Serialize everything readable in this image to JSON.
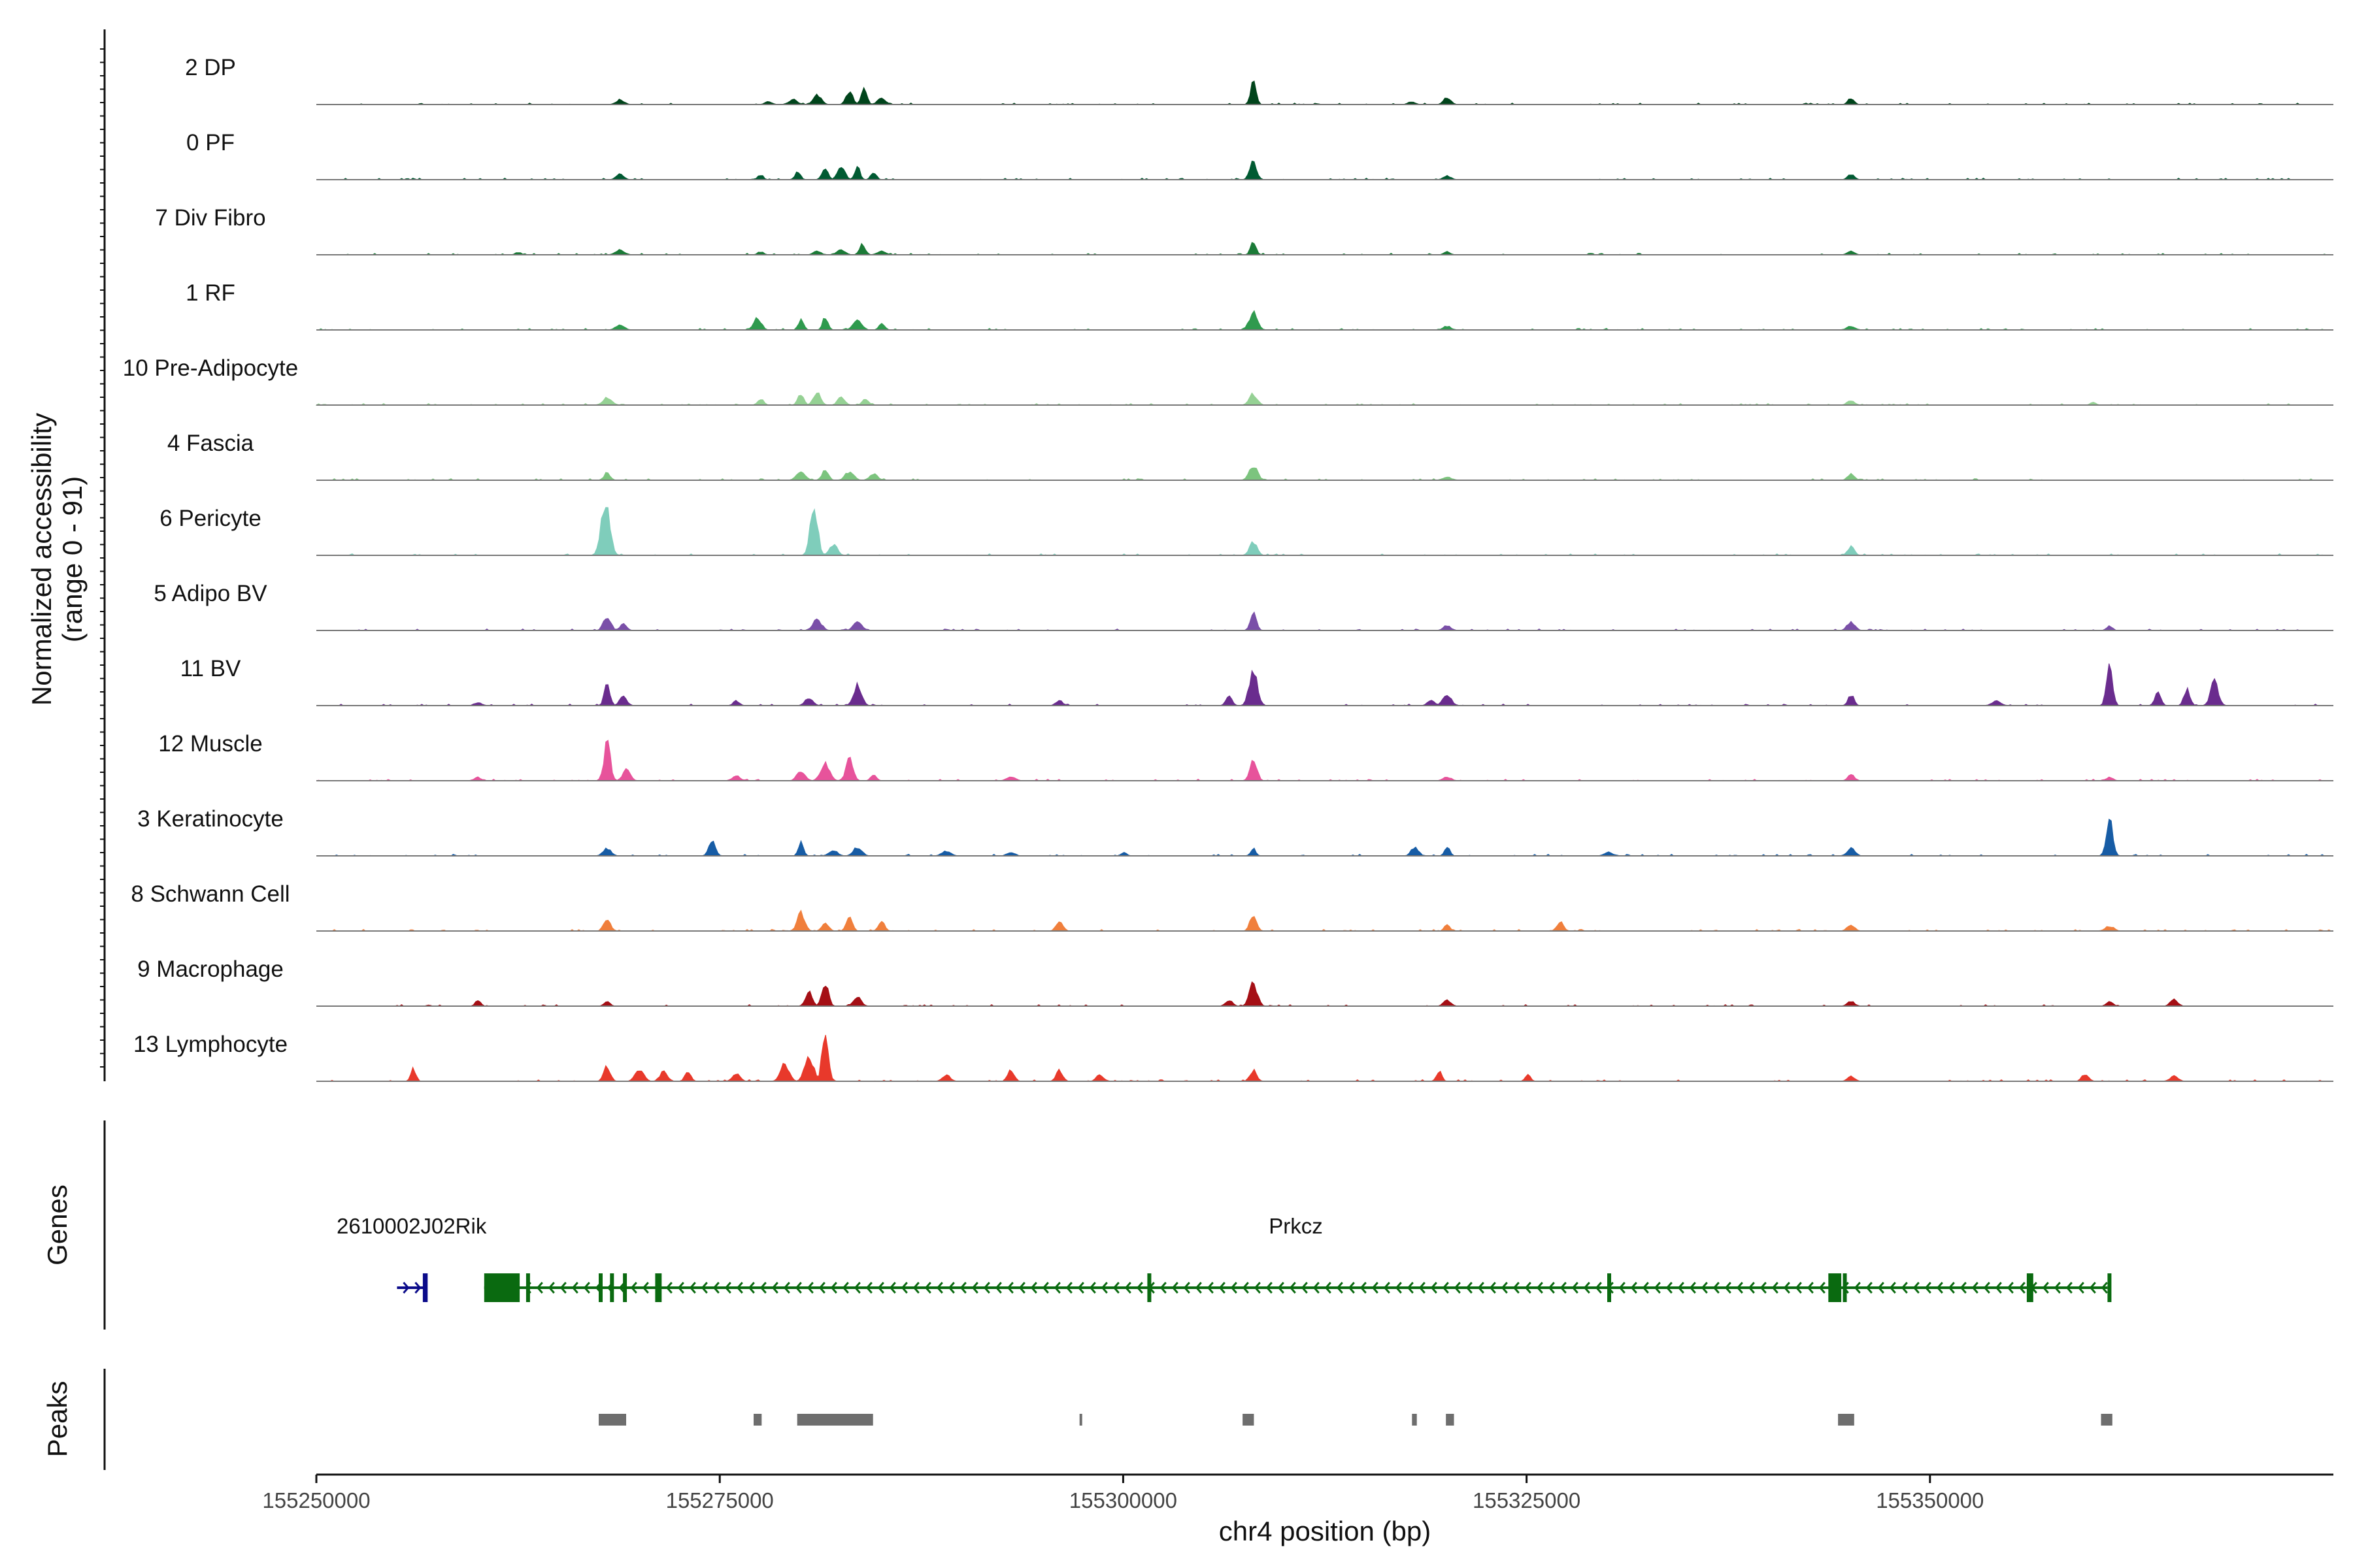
{
  "chart_data": {
    "type": "area",
    "title": "",
    "xlabel": "chr4 position (bp)",
    "ylabel": "Normalized accessibility",
    "ylabel_sub": "(range 0 - 91)",
    "xlim": [
      155250000,
      155375000
    ],
    "ylim": [
      0,
      91
    ],
    "x_ticks": [
      155250000,
      155275000,
      155300000,
      155325000,
      155350000
    ],
    "x_tick_labels": [
      "155250000",
      "155275000",
      "155300000",
      "155325000",
      "155350000"
    ],
    "panel_labels": {
      "genes": "Genes",
      "peaks": "Peaks"
    },
    "tracks": [
      {
        "name": "2 DP",
        "color": "#00441b",
        "peaks": [
          [
            155268800,
            8
          ],
          [
            155278000,
            5
          ],
          [
            155279500,
            8
          ],
          [
            155281000,
            15
          ],
          [
            155283000,
            20
          ],
          [
            155283900,
            28
          ],
          [
            155285000,
            10
          ],
          [
            155308000,
            35
          ],
          [
            155317800,
            5
          ],
          [
            155320000,
            12
          ],
          [
            155345000,
            10
          ]
        ]
      },
      {
        "name": "0 PF",
        "color": "#005a32",
        "peaks": [
          [
            155268800,
            10
          ],
          [
            155277500,
            8
          ],
          [
            155279800,
            12
          ],
          [
            155281500,
            16
          ],
          [
            155282500,
            22
          ],
          [
            155283500,
            20
          ],
          [
            155284500,
            12
          ],
          [
            155308000,
            30
          ],
          [
            155320000,
            6
          ],
          [
            155345000,
            9
          ]
        ]
      },
      {
        "name": "7 Div Fibro",
        "color": "#1b7a37",
        "peaks": [
          [
            155262500,
            4
          ],
          [
            155268800,
            8
          ],
          [
            155277500,
            5
          ],
          [
            155281000,
            7
          ],
          [
            155282500,
            8
          ],
          [
            155283800,
            18
          ],
          [
            155285000,
            6
          ],
          [
            155308000,
            20
          ],
          [
            155320000,
            5
          ],
          [
            155345000,
            6
          ]
        ]
      },
      {
        "name": "1 RF",
        "color": "#2f9a4e",
        "peaks": [
          [
            155268800,
            8
          ],
          [
            155277300,
            20
          ],
          [
            155280000,
            16
          ],
          [
            155281500,
            22
          ],
          [
            155283500,
            18
          ],
          [
            155285000,
            10
          ],
          [
            155308000,
            28
          ],
          [
            155320000,
            6
          ],
          [
            155345000,
            6
          ]
        ]
      },
      {
        "name": "10 Pre-Adipocyte",
        "color": "#95d194",
        "peaks": [
          [
            155268000,
            12
          ],
          [
            155277500,
            10
          ],
          [
            155280000,
            18
          ],
          [
            155281000,
            20
          ],
          [
            155282500,
            14
          ],
          [
            155284000,
            10
          ],
          [
            155308000,
            18
          ],
          [
            155345000,
            8
          ],
          [
            155360000,
            5
          ]
        ]
      },
      {
        "name": "4 Fascia",
        "color": "#7cc47e",
        "peaks": [
          [
            155268000,
            12
          ],
          [
            155280000,
            14
          ],
          [
            155281500,
            18
          ],
          [
            155283000,
            14
          ],
          [
            155284500,
            10
          ],
          [
            155308000,
            22
          ],
          [
            155320000,
            5
          ],
          [
            155345000,
            10
          ]
        ]
      },
      {
        "name": "6 Pericyte",
        "color": "#7fcdbb",
        "peaks": [
          [
            155267900,
            91
          ],
          [
            155280800,
            80
          ],
          [
            155282000,
            18
          ],
          [
            155308000,
            22
          ],
          [
            155345000,
            14
          ]
        ]
      },
      {
        "name": "5 Adipo BV",
        "color": "#7a4fa8",
        "peaks": [
          [
            155268000,
            24
          ],
          [
            155269000,
            10
          ],
          [
            155281000,
            18
          ],
          [
            155283500,
            14
          ],
          [
            155308000,
            28
          ],
          [
            155320000,
            8
          ],
          [
            155345000,
            14
          ],
          [
            155361000,
            8
          ]
        ]
      },
      {
        "name": "11 BV",
        "color": "#6a2c8e",
        "peaks": [
          [
            155260000,
            5
          ],
          [
            155268000,
            36
          ],
          [
            155269000,
            14
          ],
          [
            155276000,
            8
          ],
          [
            155280500,
            12
          ],
          [
            155283500,
            34
          ],
          [
            155296000,
            8
          ],
          [
            155308000,
            56
          ],
          [
            155306500,
            14
          ],
          [
            155319000,
            10
          ],
          [
            155320000,
            16
          ],
          [
            155345000,
            18
          ],
          [
            155354000,
            8
          ],
          [
            155361000,
            64
          ],
          [
            155364000,
            24
          ],
          [
            155365800,
            28
          ],
          [
            155367500,
            40
          ]
        ]
      },
      {
        "name": "12 Muscle",
        "color": "#e7539b",
        "peaks": [
          [
            155260000,
            6
          ],
          [
            155268000,
            60
          ],
          [
            155269200,
            18
          ],
          [
            155276000,
            8
          ],
          [
            155280000,
            16
          ],
          [
            155281500,
            28
          ],
          [
            155283000,
            34
          ],
          [
            155284500,
            10
          ],
          [
            155293000,
            6
          ],
          [
            155308000,
            38
          ],
          [
            155320000,
            6
          ],
          [
            155345000,
            12
          ],
          [
            155361000,
            6
          ]
        ]
      },
      {
        "name": "3 Keratinocyte",
        "color": "#175ca5",
        "peaks": [
          [
            155268000,
            12
          ],
          [
            155274500,
            24
          ],
          [
            155280000,
            22
          ],
          [
            155282000,
            10
          ],
          [
            155283500,
            14
          ],
          [
            155289000,
            8
          ],
          [
            155293000,
            6
          ],
          [
            155300000,
            6
          ],
          [
            155308000,
            12
          ],
          [
            155318000,
            14
          ],
          [
            155320000,
            16
          ],
          [
            155330000,
            6
          ],
          [
            155345000,
            12
          ],
          [
            155361000,
            60
          ]
        ]
      },
      {
        "name": "8 Schwann Cell",
        "color": "#f07f3c",
        "peaks": [
          [
            155268000,
            20
          ],
          [
            155280000,
            30
          ],
          [
            155281500,
            14
          ],
          [
            155283000,
            24
          ],
          [
            155285000,
            18
          ],
          [
            155296000,
            14
          ],
          [
            155308000,
            28
          ],
          [
            155320000,
            12
          ],
          [
            155327000,
            14
          ],
          [
            155345000,
            10
          ],
          [
            155361000,
            8
          ]
        ]
      },
      {
        "name": "9 Macrophage",
        "color": "#a50f15",
        "peaks": [
          [
            155260000,
            10
          ],
          [
            155268000,
            8
          ],
          [
            155280500,
            22
          ],
          [
            155281500,
            40
          ],
          [
            155283500,
            14
          ],
          [
            155306500,
            10
          ],
          [
            155308000,
            36
          ],
          [
            155320000,
            10
          ],
          [
            155345000,
            8
          ],
          [
            155361000,
            8
          ],
          [
            155365000,
            12
          ]
        ]
      },
      {
        "name": "13 Lymphocyte",
        "color": "#e8392b",
        "peaks": [
          [
            155256000,
            20
          ],
          [
            155268000,
            24
          ],
          [
            155270000,
            20
          ],
          [
            155271500,
            16
          ],
          [
            155273000,
            14
          ],
          [
            155276000,
            12
          ],
          [
            155279000,
            28
          ],
          [
            155280500,
            40
          ],
          [
            155281500,
            88
          ],
          [
            155289000,
            10
          ],
          [
            155293000,
            20
          ],
          [
            155296000,
            18
          ],
          [
            155298500,
            10
          ],
          [
            155308000,
            18
          ],
          [
            155319500,
            16
          ],
          [
            155325000,
            10
          ],
          [
            155345000,
            8
          ],
          [
            155359500,
            12
          ],
          [
            155365000,
            8
          ]
        ]
      }
    ],
    "genes": [
      {
        "name": "2610002J02Rik",
        "label": "2610002J02Rik",
        "strand": "+",
        "start": 155255000,
        "end": 155256800,
        "color": "#0b0b8a",
        "exons": [
          [
            155256600,
            155256900
          ]
        ]
      },
      {
        "name": "Prkcz",
        "label": "Prkcz",
        "strand": "-",
        "start": 155260400,
        "end": 155361000,
        "color": "#0a6a10",
        "exons": [
          [
            155260400,
            155262600
          ],
          [
            155263000,
            155263100
          ],
          [
            155267500,
            155267600
          ],
          [
            155268200,
            155268300
          ],
          [
            155269000,
            155269100
          ],
          [
            155271000,
            155271400
          ],
          [
            155301500,
            155301700
          ],
          [
            155330000,
            155330100
          ],
          [
            155343700,
            155344500
          ],
          [
            155344600,
            155344800
          ],
          [
            155356000,
            155356400
          ],
          [
            155361000,
            155361100
          ]
        ]
      }
    ],
    "peaks": [
      [
        155267500,
        155269200
      ],
      [
        155277100,
        155277600
      ],
      [
        155279800,
        155284500
      ],
      [
        155297300,
        155297400
      ],
      [
        155307400,
        155308100
      ],
      [
        155317900,
        155318200
      ],
      [
        155320000,
        155320500
      ],
      [
        155344300,
        155345300
      ],
      [
        155360600,
        155361300
      ]
    ]
  }
}
